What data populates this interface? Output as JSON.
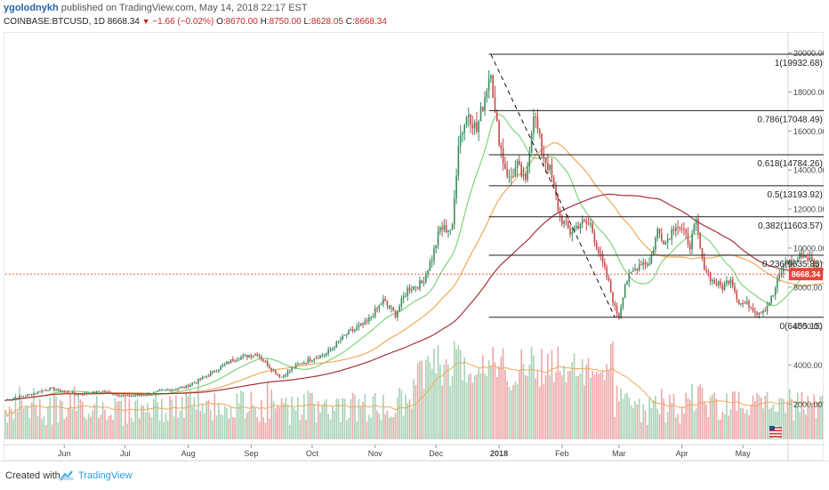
{
  "header": {
    "author": "ygolodnykh",
    "published_text": " published on TradingView.com, May 14, 2018 22:17 EST",
    "symbol": "COINBASE:BTCUSD, 1D",
    "last": "8668.34",
    "change": "−1.66 (−0.02%)",
    "open_label": "O:",
    "open": "8670.00",
    "high_label": "H:",
    "high": "8750.00",
    "low_label": "L:",
    "low": "8628.05",
    "close_label": "C:",
    "close": "8668.34"
  },
  "footer": {
    "created_with": "Created with",
    "brand": "TradingView"
  },
  "colors": {
    "up": "#3c8b5e",
    "down": "#c54a4a",
    "fib": "#1f1f1f",
    "ma_short": "#7fd47a",
    "ma_mid": "#f0a95a",
    "ma_long": "#a8323a",
    "price_tag": "#e5463a",
    "vol_up": "#a7d2b4",
    "vol_down": "#f0a6a8",
    "vol_ma": "#f0a95a",
    "axis_text": "#444",
    "grid": "#eeeeee"
  },
  "icons": {
    "flag": "us-flag-icon",
    "logo": "tradingview-cloud-icon"
  },
  "chart_data": {
    "type": "candlestick",
    "symbol": "COINBASE:BTCUSD",
    "interval": "1D",
    "y_ticks": [
      2000,
      4000,
      6000,
      8000,
      10000,
      12000,
      14000,
      16000,
      18000,
      20000
    ],
    "y_tick_labels": [
      "2000.00",
      "4000.00",
      "6000.00",
      "8000.00",
      "10000.00",
      "12000.00",
      "14000.00",
      "16000.00",
      "18000.00",
      "20000.00"
    ],
    "ylim": [
      200,
      20800
    ],
    "x_labels": [
      "Jun",
      "Jul",
      "Aug",
      "Sep",
      "Oct",
      "Nov",
      "Dec",
      "2018",
      "Feb",
      "Mar",
      "Apr",
      "May"
    ],
    "x_label_days": [
      29,
      59,
      90,
      121,
      151,
      182,
      212,
      243,
      274,
      302,
      333,
      363
    ],
    "x_range_days": [
      0,
      380
    ],
    "last_price": 8668.34,
    "last_price_label": "8668.34",
    "price_waypoints": [
      [
        0,
        2200
      ],
      [
        10,
        2450
      ],
      [
        22,
        2800
      ],
      [
        35,
        2500
      ],
      [
        48,
        2650
      ],
      [
        60,
        2400
      ],
      [
        70,
        2500
      ],
      [
        78,
        2700
      ],
      [
        88,
        2850
      ],
      [
        100,
        3500
      ],
      [
        112,
        4300
      ],
      [
        124,
        4600
      ],
      [
        132,
        3700
      ],
      [
        136,
        3400
      ],
      [
        142,
        3900
      ],
      [
        150,
        4300
      ],
      [
        158,
        4600
      ],
      [
        168,
        5600
      ],
      [
        178,
        6200
      ],
      [
        186,
        7300
      ],
      [
        192,
        6600
      ],
      [
        198,
        7900
      ],
      [
        205,
        8200
      ],
      [
        210,
        9500
      ],
      [
        214,
        11000
      ],
      [
        220,
        11000
      ],
      [
        223,
        15500
      ],
      [
        228,
        17000
      ],
      [
        232,
        16000
      ],
      [
        236,
        17800
      ],
      [
        239,
        19300
      ],
      [
        241,
        16800
      ],
      [
        245,
        14500
      ],
      [
        248,
        13500
      ],
      [
        252,
        14200
      ],
      [
        256,
        13300
      ],
      [
        260,
        17048
      ],
      [
        264,
        15000
      ],
      [
        268,
        14000
      ],
      [
        273,
        11600
      ],
      [
        278,
        10800
      ],
      [
        283,
        11300
      ],
      [
        288,
        11200
      ],
      [
        292,
        9800
      ],
      [
        297,
        8200
      ],
      [
        300,
        6900
      ],
      [
        302,
        6500
      ],
      [
        305,
        8200
      ],
      [
        309,
        8800
      ],
      [
        313,
        9300
      ],
      [
        317,
        9200
      ],
      [
        321,
        10900
      ],
      [
        325,
        10300
      ],
      [
        330,
        11300
      ],
      [
        333,
        10900
      ],
      [
        337,
        10200
      ],
      [
        340,
        11300
      ],
      [
        343,
        9300
      ],
      [
        348,
        8300
      ],
      [
        353,
        8000
      ],
      [
        357,
        8500
      ],
      [
        361,
        7200
      ],
      [
        366,
        7100
      ],
      [
        370,
        6700
      ],
      [
        374,
        6900
      ],
      [
        378,
        7600
      ],
      [
        380,
        8300
      ],
      [
        384,
        9300
      ],
      [
        388,
        9200
      ],
      [
        392,
        9700
      ],
      [
        396,
        9400
      ],
      [
        400,
        8900
      ],
      [
        404,
        8668
      ]
    ],
    "fib_start_day": 238,
    "fib_end_day": 404,
    "fib_trend_from": [
      239,
      19932.68
    ],
    "fib_trend_to": [
      300,
      6455.15
    ],
    "fib_levels": [
      {
        "ratio": "1",
        "price": 19932.68,
        "label": "1(19932.68)"
      },
      {
        "ratio": "0.786",
        "price": 17048.49,
        "label": "0.786(17048.49)"
      },
      {
        "ratio": "0.618",
        "price": 14784.26,
        "label": "0.618(14784.26)"
      },
      {
        "ratio": "0.5",
        "price": 13193.92,
        "label": "0.5(13193.92)"
      },
      {
        "ratio": "0.382",
        "price": 11603.57,
        "label": "0.382(11603.57)"
      },
      {
        "ratio": "0.236",
        "price": 9635.85,
        "label": "0.236(9635.85)"
      },
      {
        "ratio": "0",
        "price": 6455.15,
        "label": "0(6455.15)"
      }
    ],
    "volume_scale_note": "volume bars rendered beneath price, relative scale",
    "grid": false
  }
}
